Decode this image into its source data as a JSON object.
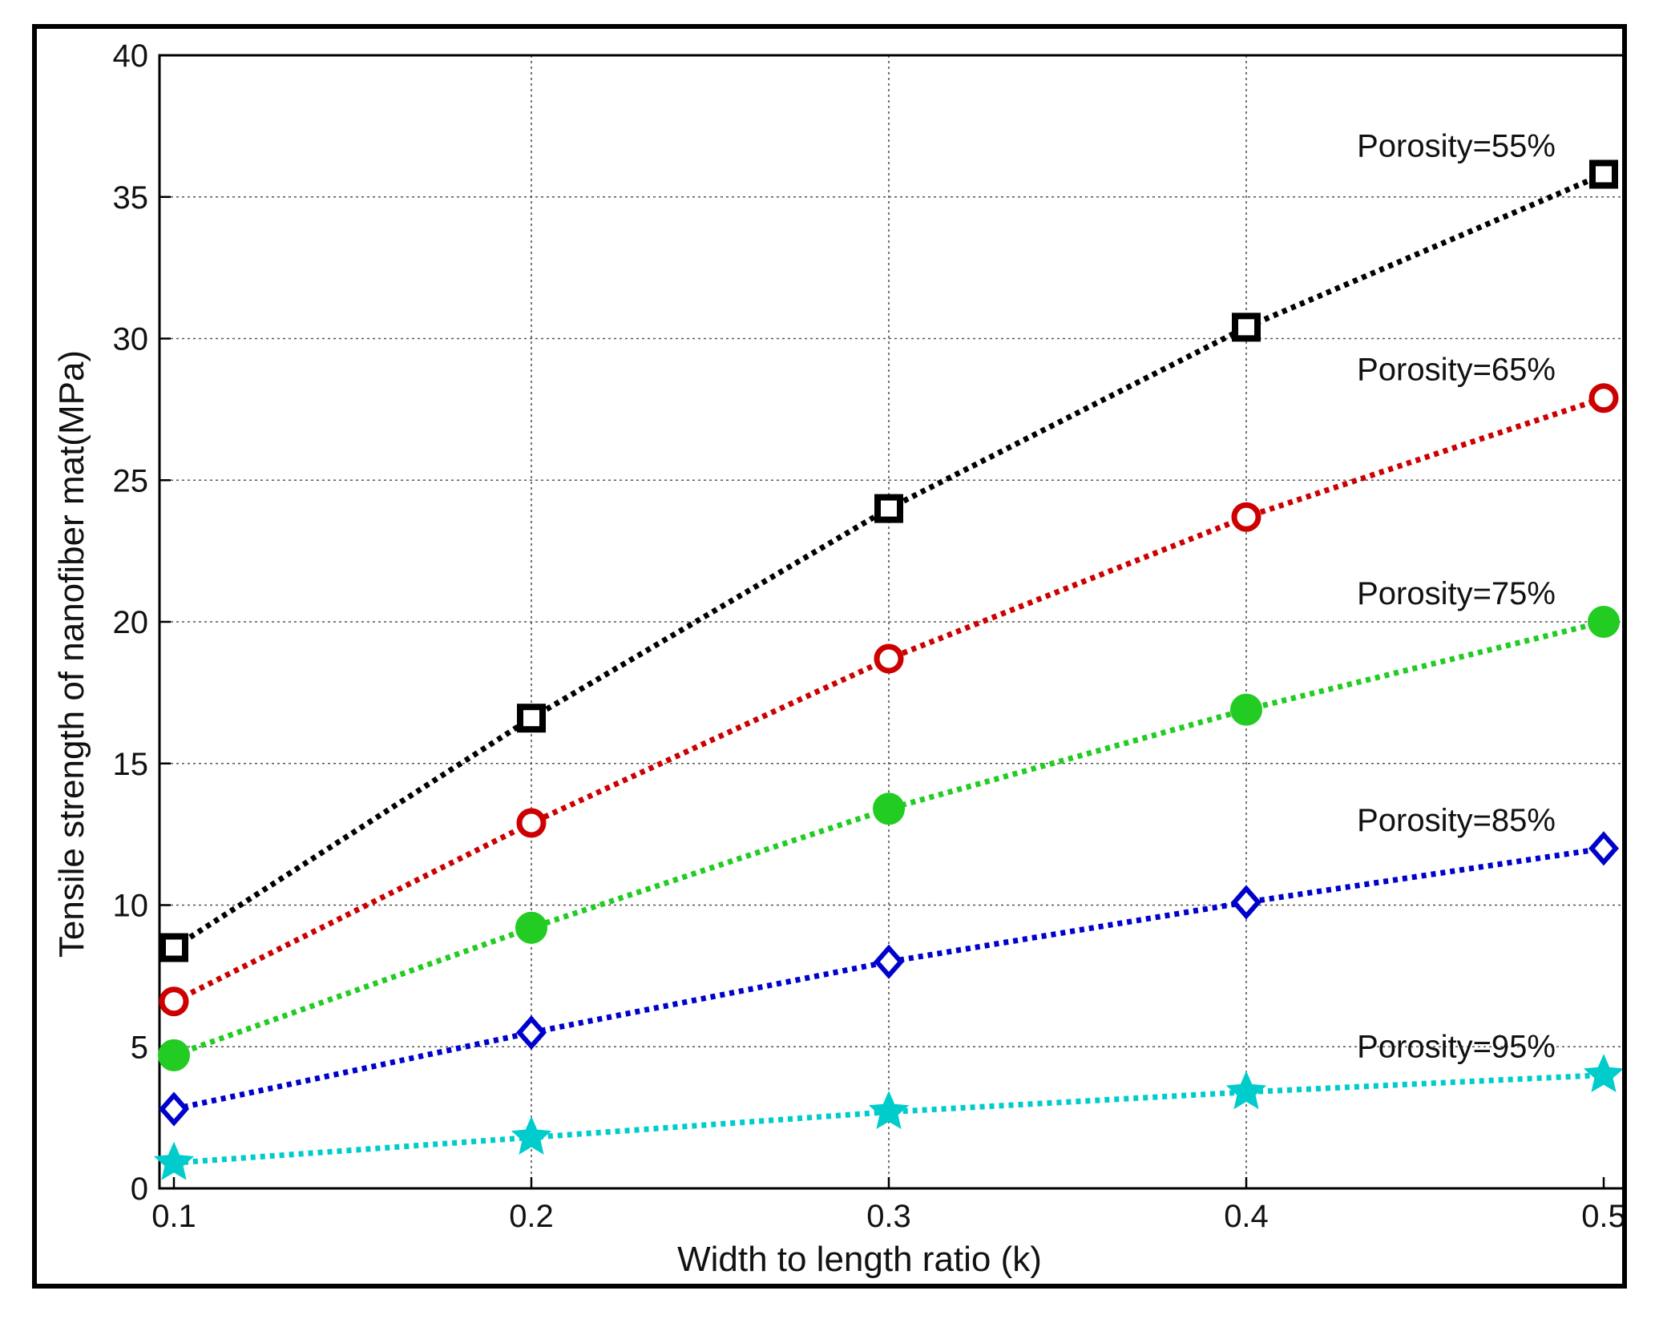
{
  "chart_data": {
    "type": "line",
    "title": "",
    "xlabel": "Width to length ratio (k)",
    "ylabel": "Tensile strength of nanofiber mat(MPa)",
    "x": [
      0.1,
      0.2,
      0.3,
      0.4,
      0.5
    ],
    "x_tick_labels": [
      "0.1",
      "0.2",
      "0.3",
      "0.4",
      "0.5"
    ],
    "y_ticks": [
      0,
      5,
      10,
      15,
      20,
      25,
      30,
      35,
      40
    ],
    "y_tick_labels": [
      "0",
      "5",
      "10",
      "15",
      "20",
      "25",
      "30",
      "35",
      "40"
    ],
    "xlim": [
      0.1,
      0.5
    ],
    "ylim": [
      0,
      40
    ],
    "grid": true,
    "series": [
      {
        "name": "Porosity=55%",
        "color": "#000000",
        "marker": "square",
        "values": [
          8.5,
          16.6,
          24.0,
          30.4,
          35.8
        ]
      },
      {
        "name": "Porosity=65%",
        "color": "#cc0000",
        "marker": "circle",
        "values": [
          6.6,
          12.9,
          18.7,
          23.7,
          27.9
        ]
      },
      {
        "name": "Porosity=75%",
        "color": "#22cc22",
        "marker": "filled-circle",
        "values": [
          4.7,
          9.2,
          13.4,
          16.9,
          20.0
        ]
      },
      {
        "name": "Porosity=85%",
        "color": "#0000cc",
        "marker": "diamond",
        "values": [
          2.8,
          5.5,
          8.0,
          10.1,
          12.0
        ]
      },
      {
        "name": "Porosity=95%",
        "color": "#00cccc",
        "marker": "star",
        "values": [
          0.9,
          1.8,
          2.7,
          3.4,
          4.0
        ]
      }
    ],
    "annotations": [
      "Porosity=55%",
      "Porosity=65%",
      "Porosity=75%",
      "Porosity=85%",
      "Porosity=95%"
    ]
  }
}
